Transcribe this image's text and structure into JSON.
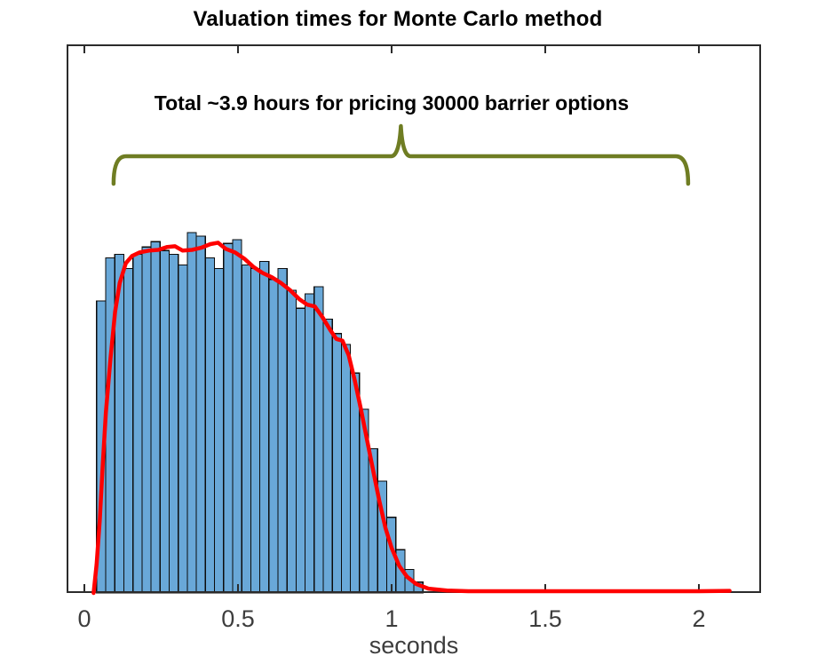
{
  "page": {
    "background": "#ffffff"
  },
  "chart_data": {
    "type": "bar",
    "subtype": "histogram-with-density-overlay",
    "title": "Valuation times for Monte Carlo method",
    "xlabel": "seconds",
    "ylabel": "",
    "xlim": [
      -0.06,
      2.23
    ],
    "xticks": [
      {
        "value": 0,
        "label": "0"
      },
      {
        "value": 0.5,
        "label": "0.5"
      },
      {
        "value": 1,
        "label": "1"
      },
      {
        "value": 1.5,
        "label": "1.5"
      },
      {
        "value": 2,
        "label": "2"
      }
    ],
    "yticks": [],
    "y_axis_visible": false,
    "grid": false,
    "legend": null,
    "histogram": {
      "unit": "seconds",
      "bin_start": 0.04,
      "bin_width": 0.0295,
      "heights_relative": [
        0.81,
        0.93,
        0.94,
        0.9,
        0.94,
        0.96,
        0.975,
        0.95,
        0.94,
        0.91,
        1.0,
        0.99,
        0.93,
        0.9,
        0.97,
        0.98,
        0.91,
        0.9,
        0.92,
        0.87,
        0.9,
        0.84,
        0.79,
        0.83,
        0.85,
        0.76,
        0.72,
        0.69,
        0.61,
        0.51,
        0.4,
        0.31,
        0.21,
        0.12,
        0.065,
        0.03
      ]
    },
    "density_curve": {
      "name": "kernel-density-fit",
      "points": [
        [
          0.03,
          0.0
        ],
        [
          0.04,
          0.08
        ],
        [
          0.05,
          0.2
        ],
        [
          0.06,
          0.36
        ],
        [
          0.07,
          0.5
        ],
        [
          0.085,
          0.65
        ],
        [
          0.1,
          0.78
        ],
        [
          0.115,
          0.86
        ],
        [
          0.135,
          0.915
        ],
        [
          0.155,
          0.935
        ],
        [
          0.18,
          0.945
        ],
        [
          0.21,
          0.95
        ],
        [
          0.24,
          0.952
        ],
        [
          0.27,
          0.96
        ],
        [
          0.295,
          0.962
        ],
        [
          0.32,
          0.95
        ],
        [
          0.35,
          0.952
        ],
        [
          0.38,
          0.958
        ],
        [
          0.41,
          0.968
        ],
        [
          0.435,
          0.972
        ],
        [
          0.46,
          0.955
        ],
        [
          0.49,
          0.945
        ],
        [
          0.52,
          0.928
        ],
        [
          0.55,
          0.905
        ],
        [
          0.58,
          0.888
        ],
        [
          0.61,
          0.876
        ],
        [
          0.64,
          0.86
        ],
        [
          0.67,
          0.84
        ],
        [
          0.7,
          0.815
        ],
        [
          0.725,
          0.8
        ],
        [
          0.75,
          0.795
        ],
        [
          0.775,
          0.765
        ],
        [
          0.8,
          0.73
        ],
        [
          0.82,
          0.705
        ],
        [
          0.84,
          0.7
        ],
        [
          0.86,
          0.66
        ],
        [
          0.88,
          0.59
        ],
        [
          0.9,
          0.51
        ],
        [
          0.92,
          0.425
        ],
        [
          0.94,
          0.34
        ],
        [
          0.96,
          0.255
        ],
        [
          0.98,
          0.18
        ],
        [
          1.0,
          0.125
        ],
        [
          1.025,
          0.075
        ],
        [
          1.05,
          0.045
        ],
        [
          1.08,
          0.025
        ],
        [
          1.12,
          0.012
        ],
        [
          1.18,
          0.007
        ],
        [
          1.25,
          0.005
        ],
        [
          1.4,
          0.005
        ],
        [
          1.6,
          0.005
        ],
        [
          1.8,
          0.005
        ],
        [
          2.0,
          0.005
        ],
        [
          2.1,
          0.006
        ]
      ],
      "y_units": "relative-frequency (no y-axis labels shown)"
    },
    "annotations": {
      "total_label": "Total ~3.9 hours for pricing 30000 barrier options",
      "brace": {
        "from_seconds": 0.095,
        "to_seconds": 1.965,
        "apex_seconds": 1.03
      }
    },
    "colors": {
      "bar_fill": "#69A8D8",
      "bar_edge": "#0c0c0c",
      "curve": "#FF0000",
      "brace": "#6F7D23",
      "axis": "#2b2b2b",
      "tick_label": "#3d3d3d",
      "title_text": "#000000",
      "annotation_text": "#000000"
    }
  }
}
